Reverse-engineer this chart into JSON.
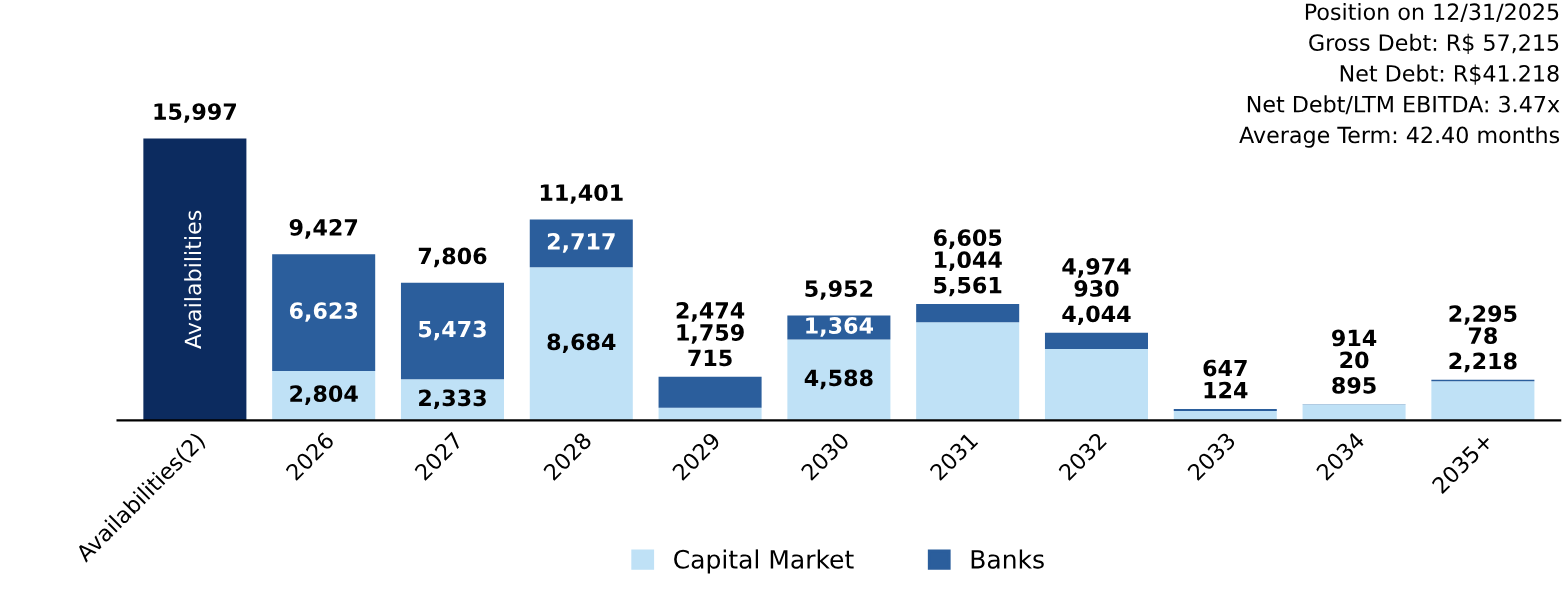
{
  "chart_data": {
    "type": "bar",
    "stacked": true,
    "categories": [
      "Availabilities(2)",
      "2026",
      "2027",
      "2028",
      "2029",
      "2030",
      "2031",
      "2032",
      "2033",
      "2034",
      "2035+"
    ],
    "series": [
      {
        "color": "#0c2b5f",
        "values": [
          15997,
          null,
          null,
          null,
          null,
          null,
          null,
          null,
          null,
          null,
          null
        ],
        "value_labels": [
          "Availabilities",
          null,
          null,
          null,
          null,
          null,
          null,
          null,
          null,
          null,
          null
        ]
      },
      {
        "name": "Capital Market",
        "color": "#bfe1f6",
        "values": [
          null,
          2804,
          2333,
          8684,
          715,
          4588,
          5561,
          4044,
          523,
          895,
          2218
        ],
        "value_labels": [
          null,
          "2,804",
          "2,333",
          "8,684",
          "715",
          "4,588",
          "5,561",
          "4,044",
          null,
          "895",
          "2,218"
        ]
      },
      {
        "name": "Banks",
        "color": "#2b5e9c",
        "values": [
          null,
          6623,
          5473,
          2717,
          1759,
          1364,
          1044,
          930,
          124,
          20,
          78
        ],
        "value_labels": [
          null,
          "6,623",
          "5,473",
          "2,717",
          "1,759",
          "1,364",
          "1,044",
          "930",
          "124",
          "20",
          "78"
        ]
      }
    ],
    "totals": [
      "15,997",
      "9,427",
      "7,806",
      "11,401",
      "2,474",
      "5,952",
      "6,605",
      "4,974",
      "647",
      "914",
      "2,295"
    ],
    "tick_labels": "x",
    "legend": "bottom",
    "grid": false,
    "annotations": [
      "Position on 12/31/2025",
      "Gross Debt: R$ 57,215",
      "Net Debt: R$41.218",
      "Net Debt/LTM EBITDA: 3.47x",
      "Average Term: 42.40 months"
    ]
  }
}
